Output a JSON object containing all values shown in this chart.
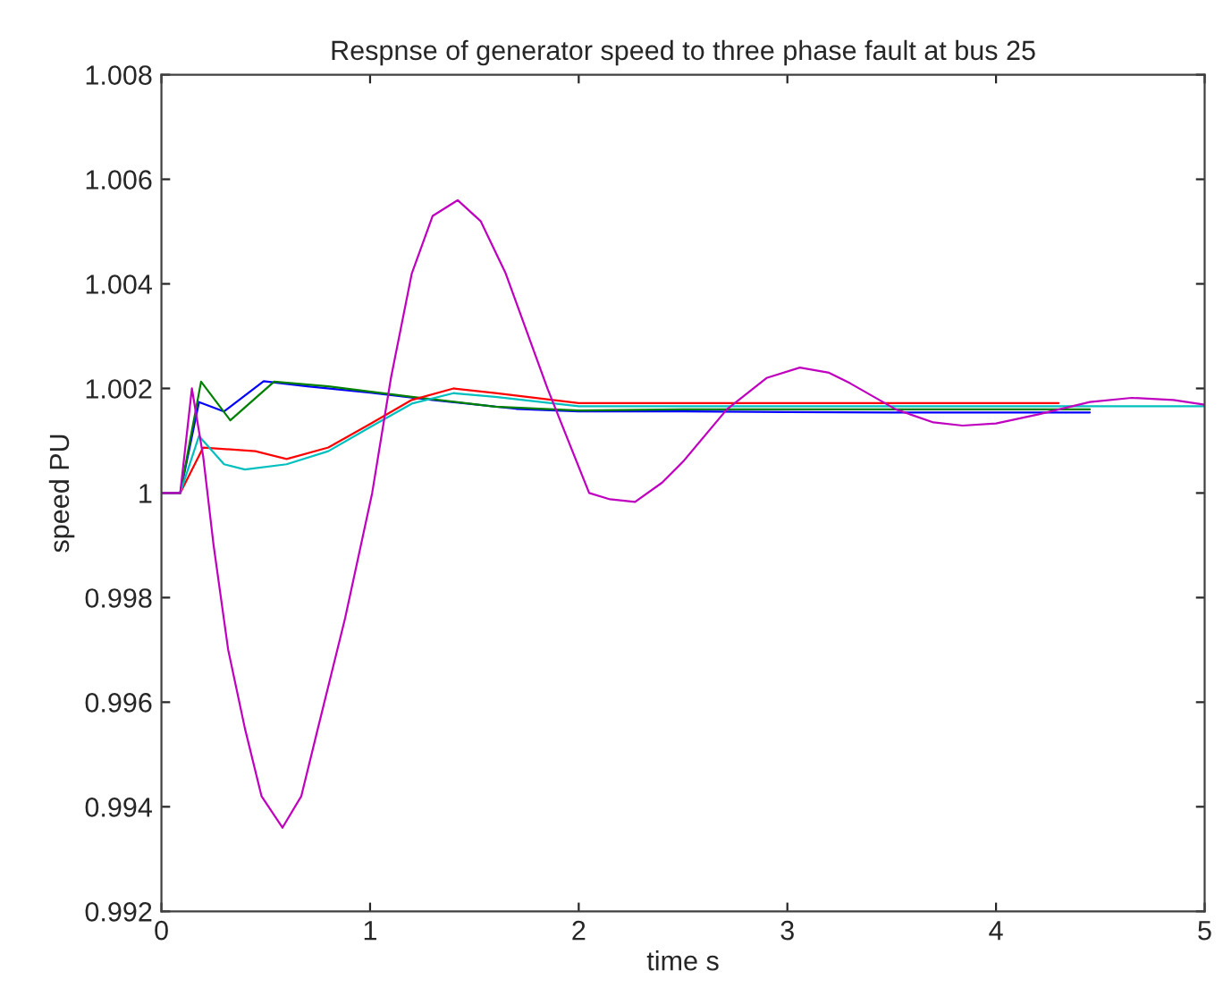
{
  "chart_data": {
    "type": "line",
    "title": "Respnse of generator speed to three phase fault at bus 25",
    "xlabel": "time s",
    "ylabel": "speed PU",
    "xlim": [
      0,
      5
    ],
    "ylim": [
      0.992,
      1.008
    ],
    "xticks": [
      0,
      1,
      2,
      3,
      4,
      5
    ],
    "yticks": [
      0.992,
      0.994,
      0.996,
      0.998,
      1,
      1.002,
      1.004,
      1.006,
      1.008
    ],
    "grid": false,
    "legend": false,
    "line_style": "solid",
    "marker": "none",
    "series": [
      {
        "color": "#0000ff",
        "x": [
          0,
          0.09,
          0.18,
          0.3,
          0.49,
          0.7,
          1.0,
          1.3,
          1.7,
          2.0,
          2.5,
          3.0,
          3.5,
          4.0,
          4.45
        ],
        "values": [
          1.0,
          1.0,
          1.00174,
          1.00156,
          1.00214,
          1.00204,
          1.00192,
          1.00178,
          1.00161,
          1.00156,
          1.00156,
          1.00155,
          1.00154,
          1.00154,
          1.00154
        ]
      },
      {
        "color": "#008000",
        "x": [
          0,
          0.09,
          0.19,
          0.33,
          0.54,
          0.8,
          1.2,
          1.6,
          2.0,
          2.5,
          3.0,
          3.5,
          4.0,
          4.45
        ],
        "values": [
          1.0,
          1.0,
          1.00213,
          1.00139,
          1.00213,
          1.00204,
          1.00184,
          1.00165,
          1.00158,
          1.0016,
          1.0016,
          1.0016,
          1.0016,
          1.0016
        ]
      },
      {
        "color": "#ff0000",
        "x": [
          0,
          0.09,
          0.2,
          0.45,
          0.6,
          0.8,
          1.0,
          1.2,
          1.4,
          1.6,
          2.0,
          2.5,
          3.0,
          3.5,
          4.0,
          4.3
        ],
        "values": [
          1.0,
          1.0,
          1.00087,
          1.0008,
          1.00065,
          1.00087,
          1.00132,
          1.00178,
          1.002,
          1.00191,
          1.00172,
          1.00172,
          1.00172,
          1.00172,
          1.00172,
          1.00172
        ]
      },
      {
        "color": "#00bfbf",
        "x": [
          0,
          0.09,
          0.18,
          0.3,
          0.4,
          0.6,
          0.8,
          1.0,
          1.2,
          1.4,
          1.6,
          2.0,
          2.5,
          3.0,
          3.5,
          4.0,
          4.5,
          5.0
        ],
        "values": [
          1.0,
          1.0,
          1.00109,
          1.00055,
          1.00045,
          1.00055,
          1.0008,
          1.00126,
          1.00171,
          1.00191,
          1.00184,
          1.00166,
          1.00166,
          1.00166,
          1.00166,
          1.00166,
          1.00166,
          1.00166
        ]
      },
      {
        "color": "#bf00bf",
        "x": [
          0,
          0.09,
          0.146,
          0.2,
          0.25,
          0.32,
          0.4,
          0.48,
          0.58,
          0.67,
          0.75,
          0.88,
          1.01,
          1.1,
          1.2,
          1.3,
          1.42,
          1.53,
          1.65,
          1.85,
          2.05,
          2.15,
          2.27,
          2.4,
          2.5,
          2.71,
          2.9,
          3.06,
          3.2,
          3.3,
          3.52,
          3.7,
          3.84,
          4.0,
          4.2,
          4.45,
          4.65,
          4.85,
          5.0
        ],
        "values": [
          1.0,
          1.0,
          1.002,
          1.0007,
          0.999,
          0.997,
          0.9955,
          0.9942,
          0.9936,
          0.9942,
          0.9955,
          0.9976,
          1.0,
          1.0022,
          1.0042,
          1.0053,
          1.0056,
          1.0052,
          1.0042,
          1.002,
          1.0,
          0.99988,
          0.99983,
          1.0002,
          1.0006,
          1.0016,
          1.0022,
          1.0024,
          1.0023,
          1.0021,
          1.0016,
          1.00135,
          1.00129,
          1.00133,
          1.0015,
          1.00174,
          1.00182,
          1.00178,
          1.00169
        ]
      }
    ]
  }
}
